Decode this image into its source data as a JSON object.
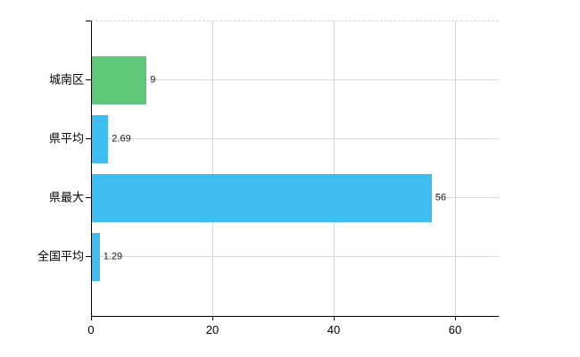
{
  "chart": {
    "background": "#ffffff",
    "axis_color": "#000000",
    "h_grid_color": "#d4dcd4",
    "v_grid_color": "#d8d8d8",
    "top_border_color": "#d8d8d8",
    "text_color": "#000000",
    "green_bar_color": "#5fc878",
    "blue_bar_color": "#3ebef0"
  },
  "chart_data": {
    "type": "bar",
    "orientation": "horizontal",
    "title": "",
    "xlabel": "",
    "ylabel": "",
    "categories": [
      "城南区",
      "県平均",
      "県最大",
      "全国平均"
    ],
    "values": [
      9,
      2.69,
      56,
      1.29
    ],
    "value_labels": [
      "9",
      "2.69",
      "56",
      "1.29"
    ],
    "bar_colors": [
      "#5fc878",
      "#3ebef0",
      "#3ebef0",
      "#3ebef0"
    ],
    "x_ticks": [
      0,
      20,
      40,
      60
    ],
    "x_tick_labels": [
      "0",
      "20",
      "40",
      "60"
    ],
    "xlim": [
      0,
      67
    ],
    "grid": "on",
    "legend": "none"
  }
}
